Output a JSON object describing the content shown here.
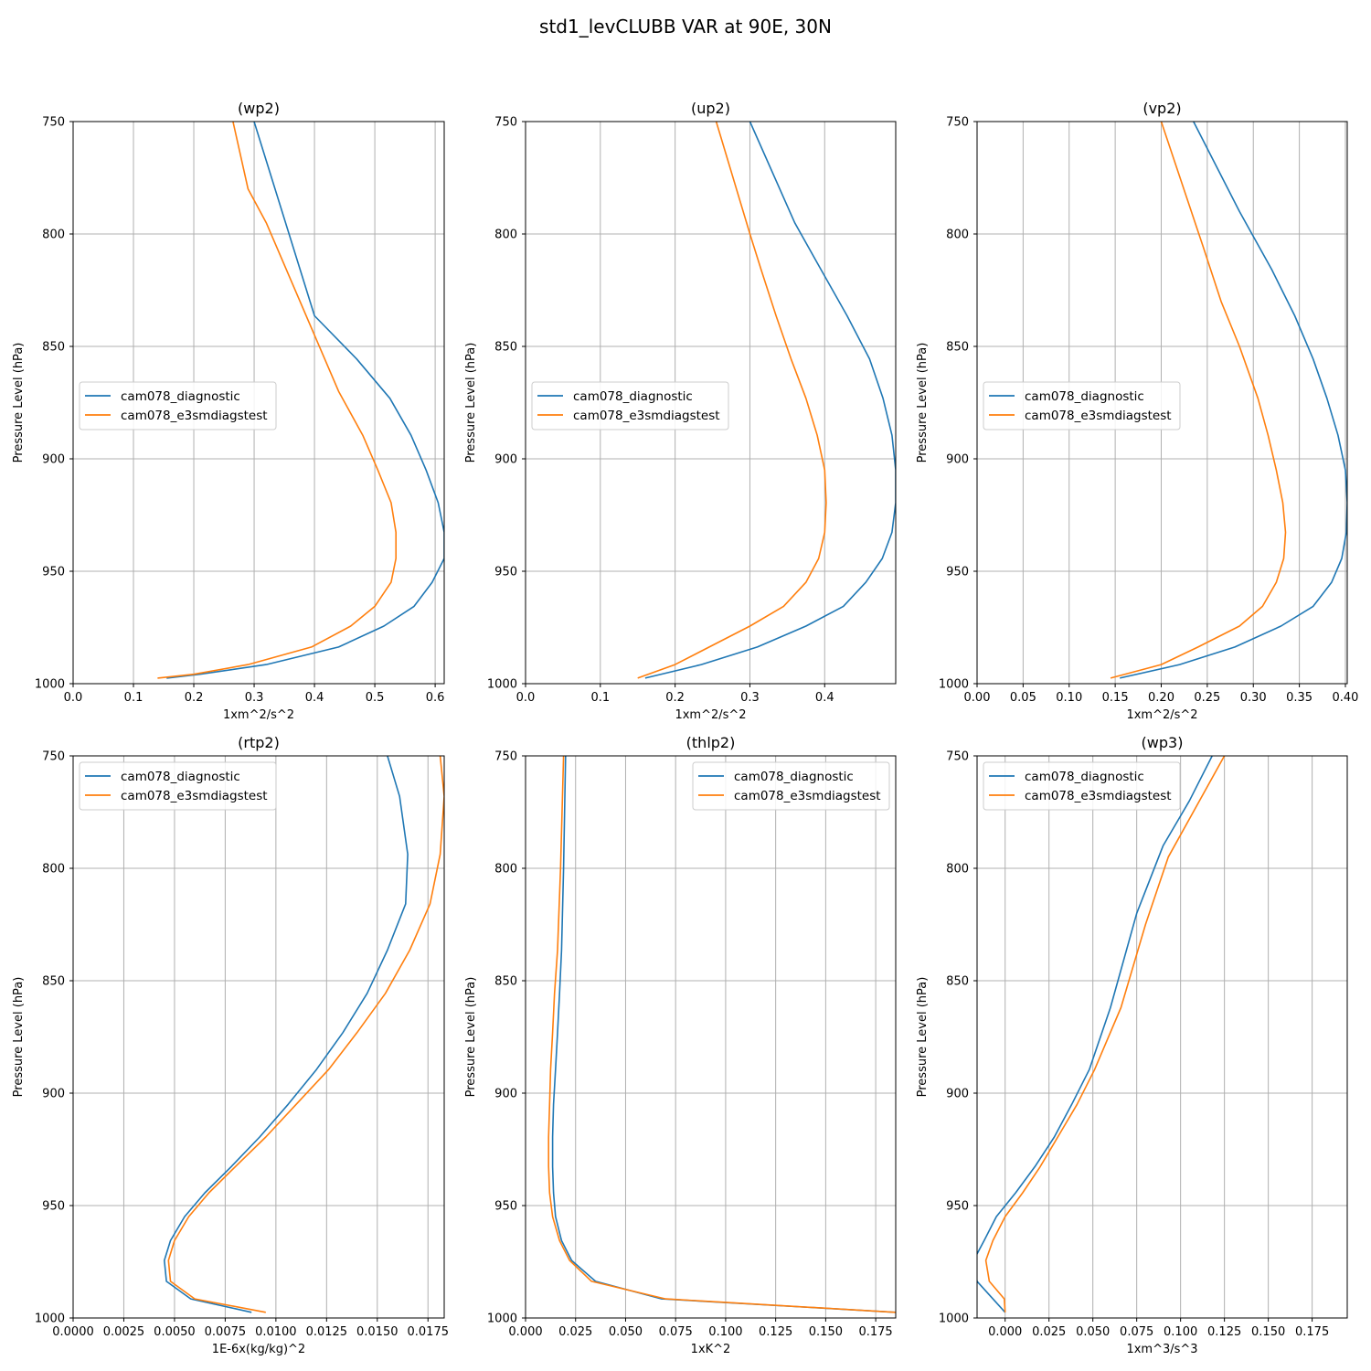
{
  "figure": {
    "title": "std1_levCLUBB VAR at 90E, 30N"
  },
  "series_styles": {
    "cam078_diagnostic": "#1f77b4",
    "cam078_e3smdiagstest": "#ff7f0e"
  },
  "chart_data": [
    {
      "type": "line",
      "title": "(wp2)",
      "xlabel": "1xm^2/s^2",
      "ylabel": "Pressure Level (hPa)",
      "xlim": [
        0.0,
        0.615
      ],
      "ylim": [
        1000,
        750
      ],
      "xticks": [
        0.0,
        0.1,
        0.2,
        0.3,
        0.4,
        0.5,
        0.6
      ],
      "xtick_labels": [
        "0.0",
        "0.1",
        "0.2",
        "0.3",
        "0.4",
        "0.5",
        "0.6"
      ],
      "yticks": [
        750,
        800,
        850,
        900,
        950,
        1000
      ],
      "ytick_labels": [
        "750",
        "800",
        "850",
        "900",
        "950",
        "1000"
      ],
      "grid": true,
      "legend": {
        "position": "center-left",
        "entries": [
          "cam078_diagnostic",
          "cam078_e3smdiagstest"
        ]
      },
      "series": [
        {
          "name": "cam078_diagnostic",
          "x": [
            0.155,
            0.21,
            0.32,
            0.44,
            0.515,
            0.565,
            0.595,
            0.615,
            0.615,
            0.605,
            0.585,
            0.56,
            0.525,
            0.47,
            0.4,
            0.3
          ],
          "y": [
            997.5,
            995.8,
            991.5,
            983.7,
            974.4,
            965.6,
            954.9,
            944.3,
            932.7,
            919.5,
            905.0,
            889.5,
            873.1,
            855.6,
            836.4,
            750
          ]
        },
        {
          "name": "cam078_e3smdiagstest",
          "x": [
            0.14,
            0.2,
            0.29,
            0.395,
            0.46,
            0.5,
            0.527,
            0.535,
            0.535,
            0.527,
            0.505,
            0.48,
            0.44,
            0.4,
            0.32,
            0.29,
            0.265
          ],
          "y": [
            997.5,
            995.8,
            991.5,
            983.7,
            974.4,
            965.6,
            954.9,
            944.3,
            932.7,
            919.5,
            905.0,
            889.5,
            870.0,
            845.0,
            795.0,
            780.0,
            750
          ]
        }
      ]
    },
    {
      "type": "line",
      "title": "(up2)",
      "xlabel": "1xm^2/s^2",
      "ylabel": "Pressure Level (hPa)",
      "xlim": [
        0.0,
        0.495
      ],
      "ylim": [
        1000,
        750
      ],
      "xticks": [
        0.0,
        0.1,
        0.2,
        0.3,
        0.4
      ],
      "xtick_labels": [
        "0.0",
        "0.1",
        "0.2",
        "0.3",
        "0.4"
      ],
      "yticks": [
        750,
        800,
        850,
        900,
        950,
        1000
      ],
      "ytick_labels": [
        "750",
        "800",
        "850",
        "900",
        "950",
        "1000"
      ],
      "grid": true,
      "legend": {
        "position": "center-left",
        "entries": [
          "cam078_diagnostic",
          "cam078_e3smdiagstest"
        ]
      },
      "series": [
        {
          "name": "cam078_diagnostic",
          "x": [
            0.16,
            0.235,
            0.31,
            0.375,
            0.425,
            0.455,
            0.477,
            0.49,
            0.495,
            0.495,
            0.49,
            0.478,
            0.46,
            0.43,
            0.395,
            0.36,
            0.3
          ],
          "y": [
            997.5,
            991.5,
            983.7,
            974.4,
            965.6,
            954.9,
            944.3,
            932.7,
            919.5,
            905.0,
            889.5,
            873.1,
            855.6,
            836.4,
            815.8,
            795.0,
            750
          ]
        },
        {
          "name": "cam078_e3smdiagstest",
          "x": [
            0.15,
            0.2,
            0.3,
            0.345,
            0.375,
            0.392,
            0.4,
            0.402,
            0.4,
            0.39,
            0.375,
            0.355,
            0.335,
            0.315,
            0.3,
            0.255
          ],
          "y": [
            997.5,
            991.5,
            974.4,
            965.6,
            954.9,
            944.3,
            932.7,
            919.5,
            905.0,
            889.5,
            873.1,
            855.6,
            836.4,
            815.8,
            800.0,
            750
          ]
        }
      ]
    },
    {
      "type": "line",
      "title": "(vp2)",
      "xlabel": "1xm^2/s^2",
      "ylabel": "Pressure Level (hPa)",
      "xlim": [
        0.0,
        0.402
      ],
      "ylim": [
        1000,
        750
      ],
      "xticks": [
        0.0,
        0.05,
        0.1,
        0.15,
        0.2,
        0.25,
        0.3,
        0.35,
        0.4
      ],
      "xtick_labels": [
        "0.00",
        "0.05",
        "0.10",
        "0.15",
        "0.20",
        "0.25",
        "0.30",
        "0.35",
        "0.40"
      ],
      "yticks": [
        750,
        800,
        850,
        900,
        950,
        1000
      ],
      "ytick_labels": [
        "750",
        "800",
        "850",
        "900",
        "950",
        "1000"
      ],
      "grid": true,
      "legend": {
        "position": "center-left",
        "entries": [
          "cam078_diagnostic",
          "cam078_e3smdiagstest"
        ]
      },
      "series": [
        {
          "name": "cam078_diagnostic",
          "x": [
            0.155,
            0.22,
            0.28,
            0.33,
            0.365,
            0.385,
            0.396,
            0.401,
            0.402,
            0.4,
            0.392,
            0.38,
            0.365,
            0.345,
            0.32,
            0.285,
            0.235
          ],
          "y": [
            997.5,
            991.5,
            983.7,
            974.4,
            965.6,
            954.9,
            944.3,
            932.7,
            919.5,
            905.0,
            889.5,
            873.1,
            855.6,
            836.4,
            815.8,
            790.0,
            750
          ]
        },
        {
          "name": "cam078_e3smdiagstest",
          "x": [
            0.145,
            0.2,
            0.24,
            0.285,
            0.31,
            0.325,
            0.333,
            0.335,
            0.332,
            0.325,
            0.316,
            0.305,
            0.285,
            0.265,
            0.245,
            0.2
          ],
          "y": [
            997.5,
            991.5,
            983.7,
            974.4,
            965.6,
            954.9,
            944.3,
            932.7,
            919.5,
            905.0,
            889.5,
            873.1,
            850.0,
            830.0,
            805.0,
            750
          ]
        }
      ]
    },
    {
      "type": "line",
      "title": "(rtp2)",
      "xlabel": "1E-6x(kg/kg)^2",
      "ylabel": "Pressure Level (hPa)",
      "xlim": [
        0.0,
        0.0183
      ],
      "ylim": [
        1000,
        750
      ],
      "xticks": [
        0.0,
        0.0025,
        0.005,
        0.0075,
        0.01,
        0.0125,
        0.015,
        0.0175
      ],
      "xtick_labels": [
        "0.0000",
        "0.0025",
        "0.0050",
        "0.0075",
        "0.0100",
        "0.0125",
        "0.0150",
        "0.0175"
      ],
      "yticks": [
        750,
        800,
        850,
        900,
        950,
        1000
      ],
      "ytick_labels": [
        "750",
        "800",
        "850",
        "900",
        "950",
        "1000"
      ],
      "grid": true,
      "legend": {
        "position": "top-left",
        "entries": [
          "cam078_diagnostic",
          "cam078_e3smdiagstest"
        ]
      },
      "series": [
        {
          "name": "cam078_diagnostic",
          "x": [
            0.0088,
            0.0058,
            0.0046,
            0.0045,
            0.0048,
            0.0055,
            0.0065,
            0.0078,
            0.0092,
            0.0106,
            0.012,
            0.0133,
            0.0145,
            0.0155,
            0.0164,
            0.0165,
            0.0161,
            0.0155
          ],
          "y": [
            997.5,
            991.5,
            983.7,
            974.4,
            965.6,
            954.9,
            944.3,
            932.7,
            919.5,
            905.0,
            889.5,
            873.1,
            855.6,
            836.4,
            815.8,
            793.8,
            768.0,
            750
          ]
        },
        {
          "name": "cam078_e3smdiagstest",
          "x": [
            0.0095,
            0.006,
            0.0048,
            0.0047,
            0.005,
            0.0057,
            0.0067,
            0.008,
            0.0095,
            0.011,
            0.0126,
            0.014,
            0.0154,
            0.0166,
            0.0176,
            0.0181,
            0.0183,
            0.0181
          ],
          "y": [
            997.5,
            991.5,
            983.7,
            974.4,
            965.6,
            954.9,
            944.3,
            932.7,
            919.5,
            905.0,
            889.5,
            873.1,
            855.6,
            836.4,
            815.8,
            793.8,
            768.0,
            750
          ]
        }
      ]
    },
    {
      "type": "line",
      "title": "(thlp2)",
      "xlabel": "1xK^2",
      "ylabel": "Pressure Level (hPa)",
      "xlim": [
        0.0,
        0.185
      ],
      "ylim": [
        1000,
        750
      ],
      "xticks": [
        0.0,
        0.025,
        0.05,
        0.075,
        0.1,
        0.125,
        0.15,
        0.175
      ],
      "xtick_labels": [
        "0.000",
        "0.025",
        "0.050",
        "0.075",
        "0.100",
        "0.125",
        "0.150",
        "0.175"
      ],
      "yticks": [
        750,
        800,
        850,
        900,
        950,
        1000
      ],
      "ytick_labels": [
        "750",
        "800",
        "850",
        "900",
        "950",
        "1000"
      ],
      "grid": true,
      "legend": {
        "position": "top-right",
        "entries": [
          "cam078_diagnostic",
          "cam078_e3smdiagstest"
        ]
      },
      "series": [
        {
          "name": "cam078_diagnostic",
          "x": [
            0.185,
            0.068,
            0.035,
            0.023,
            0.018,
            0.015,
            0.014,
            0.0135,
            0.0135,
            0.014,
            0.015,
            0.016,
            0.017,
            0.018,
            0.019,
            0.02
          ],
          "y": [
            997.5,
            991.5,
            983.7,
            974.4,
            965.6,
            954.9,
            944.3,
            932.7,
            919.5,
            905.0,
            889.5,
            873.1,
            855.6,
            836.4,
            800.0,
            750
          ]
        },
        {
          "name": "cam078_e3smdiagstest",
          "x": [
            0.185,
            0.07,
            0.033,
            0.022,
            0.017,
            0.0135,
            0.012,
            0.0115,
            0.0115,
            0.012,
            0.0125,
            0.0135,
            0.0145,
            0.016,
            0.0175,
            0.019
          ],
          "y": [
            997.5,
            991.5,
            983.7,
            974.4,
            965.6,
            954.9,
            944.3,
            932.7,
            919.5,
            905.0,
            889.5,
            873.1,
            855.6,
            836.4,
            800.0,
            750
          ]
        }
      ]
    },
    {
      "type": "line",
      "title": "(wp3)",
      "xlabel": "1xm^3/s^3",
      "ylabel": "Pressure Level (hPa)",
      "xlim": [
        -0.016,
        0.195
      ],
      "ylim": [
        1000,
        750
      ],
      "xticks": [
        0.0,
        0.025,
        0.05,
        0.075,
        0.1,
        0.125,
        0.15,
        0.175
      ],
      "xtick_labels": [
        "0.000",
        "0.025",
        "0.050",
        "0.075",
        "0.100",
        "0.125",
        "0.150",
        "0.175"
      ],
      "yticks": [
        750,
        800,
        850,
        900,
        950,
        1000
      ],
      "ytick_labels": [
        "750",
        "800",
        "850",
        "900",
        "950",
        "1000"
      ],
      "grid": true,
      "legend": {
        "position": "top-left",
        "entries": [
          "cam078_diagnostic",
          "cam078_e3smdiagstest"
        ]
      },
      "series": [
        {
          "name": "cam078_diagnostic",
          "x": [
            0.0,
            -0.016,
            -0.018,
            -0.012,
            -0.005,
            0.006,
            0.017,
            0.028,
            0.038,
            0.048,
            0.06,
            0.075,
            0.09,
            0.105,
            0.118
          ],
          "y": [
            997.5,
            983.7,
            974.4,
            965.6,
            954.9,
            944.3,
            932.7,
            919.5,
            905.0,
            889.5,
            862.0,
            820.0,
            790.0,
            770.0,
            750
          ]
        },
        {
          "name": "cam078_e3smdiagstest",
          "x": [
            0.0,
            -0.0005,
            -0.009,
            -0.011,
            -0.007,
            0.0,
            0.01,
            0.02,
            0.03,
            0.041,
            0.051,
            0.066,
            0.08,
            0.093,
            0.125
          ],
          "y": [
            997.5,
            991.5,
            983.7,
            974.4,
            965.6,
            954.9,
            944.3,
            932.7,
            919.5,
            905.0,
            889.5,
            862.0,
            825.0,
            795.0,
            750
          ]
        }
      ]
    }
  ]
}
